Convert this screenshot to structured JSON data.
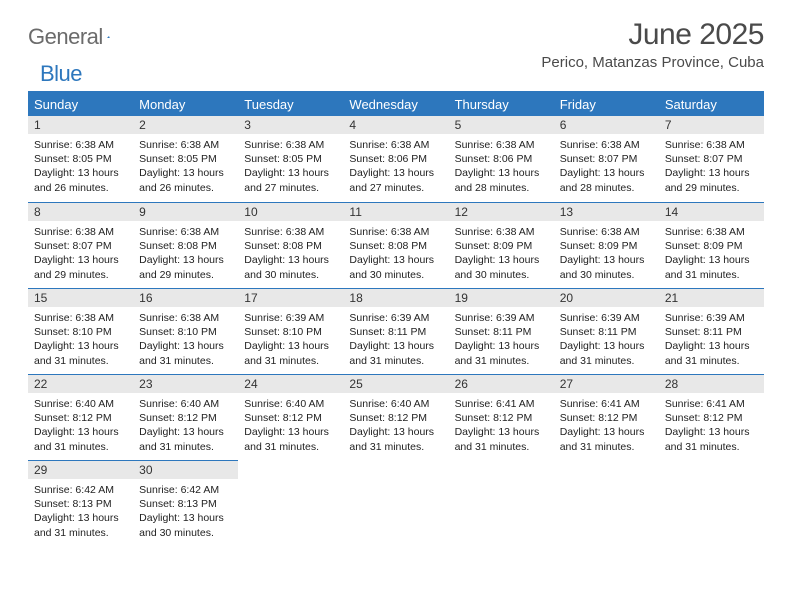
{
  "logo": {
    "word1": "General",
    "word2": "Blue"
  },
  "title": "June 2025",
  "subtitle": "Perico, Matanzas Province, Cuba",
  "colors": {
    "accent": "#2d77bd",
    "header_bg": "#2d77bd",
    "daynum_bg": "#e8e8e8",
    "text": "#333333",
    "logo_gray": "#6b6b6b"
  },
  "day_headers": [
    "Sunday",
    "Monday",
    "Tuesday",
    "Wednesday",
    "Thursday",
    "Friday",
    "Saturday"
  ],
  "days": [
    {
      "n": "1",
      "sr": "6:38 AM",
      "ss": "8:05 PM",
      "dl": "13 hours and 26 minutes."
    },
    {
      "n": "2",
      "sr": "6:38 AM",
      "ss": "8:05 PM",
      "dl": "13 hours and 26 minutes."
    },
    {
      "n": "3",
      "sr": "6:38 AM",
      "ss": "8:05 PM",
      "dl": "13 hours and 27 minutes."
    },
    {
      "n": "4",
      "sr": "6:38 AM",
      "ss": "8:06 PM",
      "dl": "13 hours and 27 minutes."
    },
    {
      "n": "5",
      "sr": "6:38 AM",
      "ss": "8:06 PM",
      "dl": "13 hours and 28 minutes."
    },
    {
      "n": "6",
      "sr": "6:38 AM",
      "ss": "8:07 PM",
      "dl": "13 hours and 28 minutes."
    },
    {
      "n": "7",
      "sr": "6:38 AM",
      "ss": "8:07 PM",
      "dl": "13 hours and 29 minutes."
    },
    {
      "n": "8",
      "sr": "6:38 AM",
      "ss": "8:07 PM",
      "dl": "13 hours and 29 minutes."
    },
    {
      "n": "9",
      "sr": "6:38 AM",
      "ss": "8:08 PM",
      "dl": "13 hours and 29 minutes."
    },
    {
      "n": "10",
      "sr": "6:38 AM",
      "ss": "8:08 PM",
      "dl": "13 hours and 30 minutes."
    },
    {
      "n": "11",
      "sr": "6:38 AM",
      "ss": "8:08 PM",
      "dl": "13 hours and 30 minutes."
    },
    {
      "n": "12",
      "sr": "6:38 AM",
      "ss": "8:09 PM",
      "dl": "13 hours and 30 minutes."
    },
    {
      "n": "13",
      "sr": "6:38 AM",
      "ss": "8:09 PM",
      "dl": "13 hours and 30 minutes."
    },
    {
      "n": "14",
      "sr": "6:38 AM",
      "ss": "8:09 PM",
      "dl": "13 hours and 31 minutes."
    },
    {
      "n": "15",
      "sr": "6:38 AM",
      "ss": "8:10 PM",
      "dl": "13 hours and 31 minutes."
    },
    {
      "n": "16",
      "sr": "6:38 AM",
      "ss": "8:10 PM",
      "dl": "13 hours and 31 minutes."
    },
    {
      "n": "17",
      "sr": "6:39 AM",
      "ss": "8:10 PM",
      "dl": "13 hours and 31 minutes."
    },
    {
      "n": "18",
      "sr": "6:39 AM",
      "ss": "8:11 PM",
      "dl": "13 hours and 31 minutes."
    },
    {
      "n": "19",
      "sr": "6:39 AM",
      "ss": "8:11 PM",
      "dl": "13 hours and 31 minutes."
    },
    {
      "n": "20",
      "sr": "6:39 AM",
      "ss": "8:11 PM",
      "dl": "13 hours and 31 minutes."
    },
    {
      "n": "21",
      "sr": "6:39 AM",
      "ss": "8:11 PM",
      "dl": "13 hours and 31 minutes."
    },
    {
      "n": "22",
      "sr": "6:40 AM",
      "ss": "8:12 PM",
      "dl": "13 hours and 31 minutes."
    },
    {
      "n": "23",
      "sr": "6:40 AM",
      "ss": "8:12 PM",
      "dl": "13 hours and 31 minutes."
    },
    {
      "n": "24",
      "sr": "6:40 AM",
      "ss": "8:12 PM",
      "dl": "13 hours and 31 minutes."
    },
    {
      "n": "25",
      "sr": "6:40 AM",
      "ss": "8:12 PM",
      "dl": "13 hours and 31 minutes."
    },
    {
      "n": "26",
      "sr": "6:41 AM",
      "ss": "8:12 PM",
      "dl": "13 hours and 31 minutes."
    },
    {
      "n": "27",
      "sr": "6:41 AM",
      "ss": "8:12 PM",
      "dl": "13 hours and 31 minutes."
    },
    {
      "n": "28",
      "sr": "6:41 AM",
      "ss": "8:12 PM",
      "dl": "13 hours and 31 minutes."
    },
    {
      "n": "29",
      "sr": "6:42 AM",
      "ss": "8:13 PM",
      "dl": "13 hours and 31 minutes."
    },
    {
      "n": "30",
      "sr": "6:42 AM",
      "ss": "8:13 PM",
      "dl": "13 hours and 30 minutes."
    }
  ],
  "labels": {
    "sunrise": "Sunrise:",
    "sunset": "Sunset:",
    "daylight": "Daylight:"
  },
  "layout": {
    "weeks": 5,
    "cols": 7,
    "first_day_col": 0,
    "total_days": 30
  },
  "typography": {
    "title_size": 30,
    "subtitle_size": 15,
    "header_size": 13,
    "daynum_size": 12,
    "body_size": 10.5
  }
}
